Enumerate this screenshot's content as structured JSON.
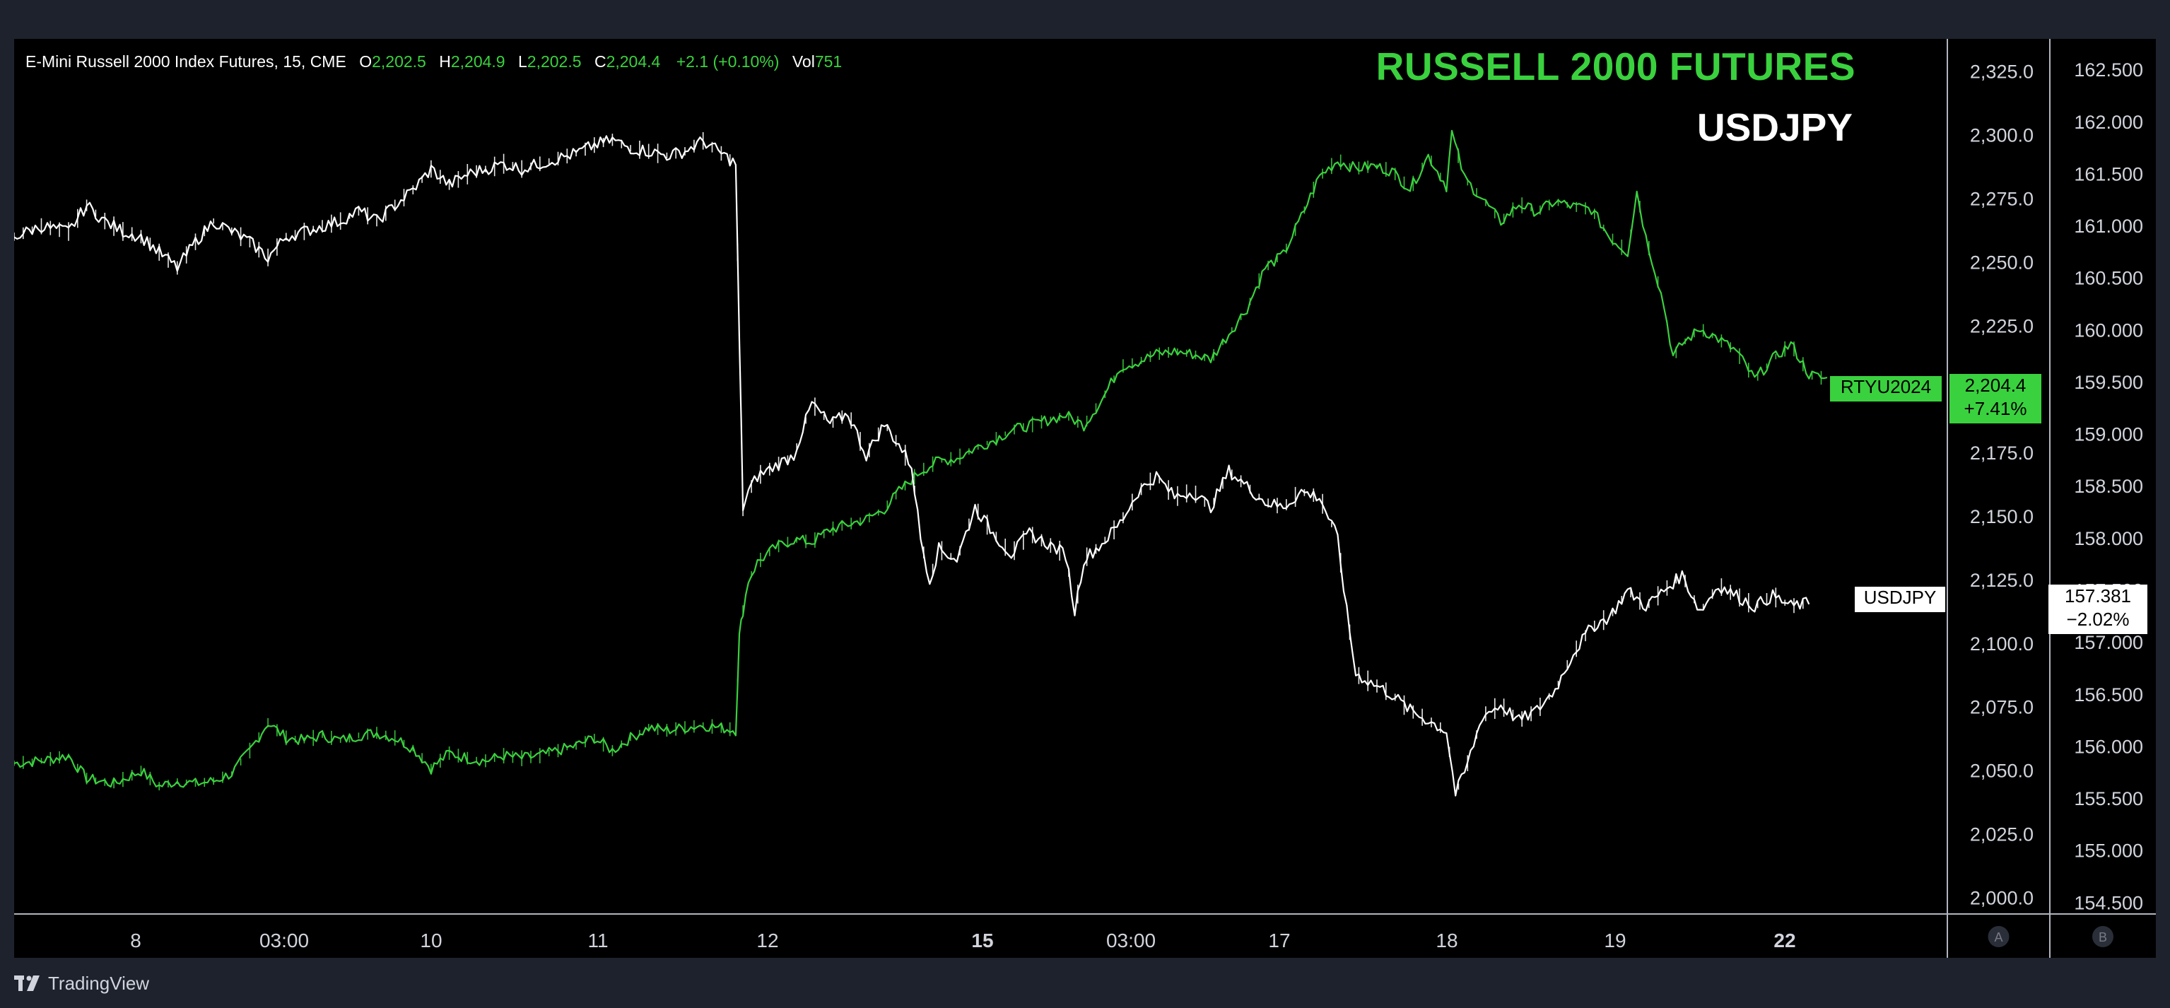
{
  "legend": {
    "symbol": "E-Mini Russell 2000 Index Futures, 15, CME",
    "o_label": "O",
    "o": "2,202.5",
    "h_label": "H",
    "h": "2,204.9",
    "l_label": "L",
    "l": "2,202.5",
    "c_label": "C",
    "c": "2,204.4",
    "change": "+2.1 (+0.10%)",
    "vol_label": "Vol",
    "vol": "751"
  },
  "titles": {
    "primary": "RUSSELL 2000 FUTURES",
    "secondary": "USDJPY"
  },
  "brand": "TradingView",
  "colors": {
    "russell": "#3ad13e",
    "usdjpy": "#ffffff",
    "background": "#000000",
    "frame": "#1e222d"
  },
  "scales": {
    "a_button": "A",
    "b_button": "B"
  },
  "markers": {
    "russell_symbol": "RTYU2024",
    "russell_price": "2,204.4",
    "russell_change": "+7.41%",
    "usdjpy_symbol": "USDJPY",
    "usdjpy_price": "157.381",
    "usdjpy_change": "−2.02%"
  },
  "chart_data": {
    "type": "line",
    "x_ticks": [
      "8",
      "03:00",
      "10",
      "11",
      "12",
      "15",
      "03:00",
      "17",
      "18",
      "19",
      "22"
    ],
    "x_ticks_bold": [
      "15",
      "22"
    ],
    "axes": {
      "left_scale": {
        "ticks": [
          "2,325.0",
          "2,300.0",
          "2,275.0",
          "2,250.0",
          "2,225.0",
          "2,200.0",
          "2,175.0",
          "2,150.0",
          "2,125.0",
          "2,100.0",
          "2,075.0",
          "2,050.0",
          "2,025.0",
          "2,000.0"
        ],
        "range": [
          1994,
          2338
        ]
      },
      "right_scale": {
        "ticks": [
          "162.500",
          "162.000",
          "161.500",
          "161.000",
          "160.500",
          "160.000",
          "159.500",
          "159.000",
          "158.500",
          "158.000",
          "157.500",
          "157.000",
          "156.500",
          "156.000",
          "155.500",
          "155.000",
          "154.500"
        ],
        "range": [
          154.4,
          162.8
        ]
      }
    },
    "series": [
      {
        "name": "RTYU2024",
        "scale": "left",
        "points": [
          [
            0.0,
            2053
          ],
          [
            0.15,
            2054
          ],
          [
            0.3,
            2056
          ],
          [
            0.4,
            2047
          ],
          [
            0.55,
            2045
          ],
          [
            0.7,
            2050
          ],
          [
            0.8,
            2044
          ],
          [
            0.9,
            2046
          ],
          [
            1.0,
            2045
          ],
          [
            1.1,
            2046
          ],
          [
            1.2,
            2049
          ],
          [
            1.3,
            2058
          ],
          [
            1.4,
            2069
          ],
          [
            1.5,
            2063
          ],
          [
            1.6,
            2062
          ],
          [
            1.7,
            2064
          ],
          [
            1.8,
            2062
          ],
          [
            1.9,
            2064
          ],
          [
            2.0,
            2065
          ],
          [
            2.1,
            2063
          ],
          [
            2.2,
            2059
          ],
          [
            2.3,
            2051
          ],
          [
            2.4,
            2057
          ],
          [
            2.5,
            2055
          ],
          [
            2.6,
            2054
          ],
          [
            2.7,
            2056
          ],
          [
            2.8,
            2055
          ],
          [
            2.9,
            2056
          ],
          [
            3.0,
            2058
          ],
          [
            3.1,
            2060
          ],
          [
            3.2,
            2063
          ],
          [
            3.3,
            2058
          ],
          [
            3.4,
            2063
          ],
          [
            3.5,
            2067
          ],
          [
            3.6,
            2066
          ],
          [
            3.7,
            2067
          ],
          [
            3.8,
            2068
          ],
          [
            3.9,
            2067
          ],
          [
            3.98,
            2066
          ],
          [
            4.0,
            2103
          ],
          [
            4.02,
            2113
          ],
          [
            4.05,
            2125
          ],
          [
            4.1,
            2132
          ],
          [
            4.2,
            2138
          ],
          [
            4.3,
            2141
          ],
          [
            4.4,
            2140
          ],
          [
            4.5,
            2145
          ],
          [
            4.6,
            2147
          ],
          [
            4.7,
            2149
          ],
          [
            4.8,
            2153
          ],
          [
            4.88,
            2160
          ],
          [
            5.0,
            2168
          ],
          [
            5.1,
            2172
          ],
          [
            5.2,
            2173
          ],
          [
            5.3,
            2177
          ],
          [
            5.4,
            2180
          ],
          [
            5.5,
            2184
          ],
          [
            5.6,
            2186
          ],
          [
            5.7,
            2188
          ],
          [
            5.8,
            2190
          ],
          [
            5.9,
            2186
          ],
          [
            6.0,
            2196
          ],
          [
            6.1,
            2209
          ],
          [
            6.2,
            2211
          ],
          [
            6.3,
            2214
          ],
          [
            6.4,
            2215
          ],
          [
            6.5,
            2214
          ],
          [
            6.6,
            2212
          ],
          [
            6.7,
            2222
          ],
          [
            6.8,
            2232
          ],
          [
            6.9,
            2248
          ],
          [
            7.0,
            2253
          ],
          [
            7.1,
            2268
          ],
          [
            7.2,
            2284
          ],
          [
            7.3,
            2290
          ],
          [
            7.4,
            2287
          ],
          [
            7.5,
            2288
          ],
          [
            7.6,
            2286
          ],
          [
            7.7,
            2279
          ],
          [
            7.8,
            2292
          ],
          [
            7.9,
            2280
          ],
          [
            7.93,
            2301
          ],
          [
            8.0,
            2283
          ],
          [
            8.1,
            2275
          ],
          [
            8.2,
            2266
          ],
          [
            8.3,
            2273
          ],
          [
            8.4,
            2270
          ],
          [
            8.5,
            2274
          ],
          [
            8.6,
            2272
          ],
          [
            8.7,
            2271
          ],
          [
            8.8,
            2260
          ],
          [
            8.9,
            2254
          ],
          [
            8.95,
            2278
          ],
          [
            9.0,
            2260
          ],
          [
            9.05,
            2247
          ],
          [
            9.1,
            2233
          ],
          [
            9.15,
            2213
          ],
          [
            9.2,
            2218
          ],
          [
            9.3,
            2224
          ],
          [
            9.4,
            2220
          ],
          [
            9.5,
            2215
          ],
          [
            9.6,
            2204
          ],
          [
            9.7,
            2212
          ],
          [
            9.8,
            2218
          ],
          [
            9.9,
            2206
          ],
          [
            10.0,
            2204
          ]
        ]
      },
      {
        "name": "USDJPY",
        "scale": "right",
        "points": [
          [
            0.0,
            160.9
          ],
          [
            0.15,
            161.0
          ],
          [
            0.3,
            160.95
          ],
          [
            0.4,
            161.2
          ],
          [
            0.5,
            161.05
          ],
          [
            0.6,
            160.95
          ],
          [
            0.7,
            160.9
          ],
          [
            0.8,
            160.75
          ],
          [
            0.9,
            160.6
          ],
          [
            1.0,
            160.85
          ],
          [
            1.1,
            161.05
          ],
          [
            1.2,
            160.95
          ],
          [
            1.3,
            160.85
          ],
          [
            1.4,
            160.7
          ],
          [
            1.5,
            160.9
          ],
          [
            1.6,
            160.95
          ],
          [
            1.7,
            161.0
          ],
          [
            1.8,
            161.05
          ],
          [
            1.9,
            161.15
          ],
          [
            2.0,
            161.05
          ],
          [
            2.1,
            161.2
          ],
          [
            2.2,
            161.35
          ],
          [
            2.3,
            161.55
          ],
          [
            2.4,
            161.4
          ],
          [
            2.5,
            161.5
          ],
          [
            2.6,
            161.55
          ],
          [
            2.7,
            161.6
          ],
          [
            2.8,
            161.55
          ],
          [
            2.9,
            161.6
          ],
          [
            3.0,
            161.65
          ],
          [
            3.1,
            161.7
          ],
          [
            3.2,
            161.78
          ],
          [
            3.3,
            161.83
          ],
          [
            3.4,
            161.75
          ],
          [
            3.5,
            161.72
          ],
          [
            3.6,
            161.68
          ],
          [
            3.7,
            161.72
          ],
          [
            3.8,
            161.82
          ],
          [
            3.9,
            161.7
          ],
          [
            3.98,
            161.6
          ],
          [
            4.0,
            159.9
          ],
          [
            4.02,
            158.3
          ],
          [
            4.05,
            158.45
          ],
          [
            4.1,
            158.6
          ],
          [
            4.2,
            158.7
          ],
          [
            4.3,
            158.8
          ],
          [
            4.4,
            159.3
          ],
          [
            4.5,
            159.1
          ],
          [
            4.6,
            159.2
          ],
          [
            4.7,
            158.8
          ],
          [
            4.8,
            159.1
          ],
          [
            4.88,
            158.9
          ],
          [
            4.95,
            158.7
          ],
          [
            5.0,
            158.0
          ],
          [
            5.05,
            157.6
          ],
          [
            5.1,
            157.9
          ],
          [
            5.2,
            157.8
          ],
          [
            5.3,
            158.3
          ],
          [
            5.4,
            158.05
          ],
          [
            5.5,
            157.85
          ],
          [
            5.6,
            158.05
          ],
          [
            5.7,
            157.95
          ],
          [
            5.8,
            157.85
          ],
          [
            5.85,
            157.3
          ],
          [
            5.9,
            157.8
          ],
          [
            6.0,
            157.95
          ],
          [
            6.1,
            158.15
          ],
          [
            6.2,
            158.45
          ],
          [
            6.3,
            158.6
          ],
          [
            6.4,
            158.4
          ],
          [
            6.5,
            158.45
          ],
          [
            6.6,
            158.3
          ],
          [
            6.7,
            158.65
          ],
          [
            6.8,
            158.5
          ],
          [
            6.9,
            158.35
          ],
          [
            7.0,
            158.3
          ],
          [
            7.1,
            158.45
          ],
          [
            7.2,
            158.4
          ],
          [
            7.3,
            158.0
          ],
          [
            7.35,
            157.3
          ],
          [
            7.4,
            156.7
          ],
          [
            7.5,
            156.6
          ],
          [
            7.6,
            156.5
          ],
          [
            7.7,
            156.35
          ],
          [
            7.8,
            156.25
          ],
          [
            7.9,
            156.15
          ],
          [
            7.95,
            155.55
          ],
          [
            8.0,
            155.75
          ],
          [
            8.1,
            156.3
          ],
          [
            8.2,
            156.4
          ],
          [
            8.3,
            156.25
          ],
          [
            8.4,
            156.35
          ],
          [
            8.5,
            156.55
          ],
          [
            8.6,
            156.9
          ],
          [
            8.7,
            157.15
          ],
          [
            8.8,
            157.25
          ],
          [
            8.9,
            157.5
          ],
          [
            9.0,
            157.35
          ],
          [
            9.1,
            157.5
          ],
          [
            9.2,
            157.65
          ],
          [
            9.3,
            157.3
          ],
          [
            9.4,
            157.55
          ],
          [
            9.5,
            157.45
          ],
          [
            9.6,
            157.35
          ],
          [
            9.7,
            157.45
          ],
          [
            9.8,
            157.35
          ],
          [
            9.9,
            157.381
          ]
        ]
      }
    ]
  }
}
